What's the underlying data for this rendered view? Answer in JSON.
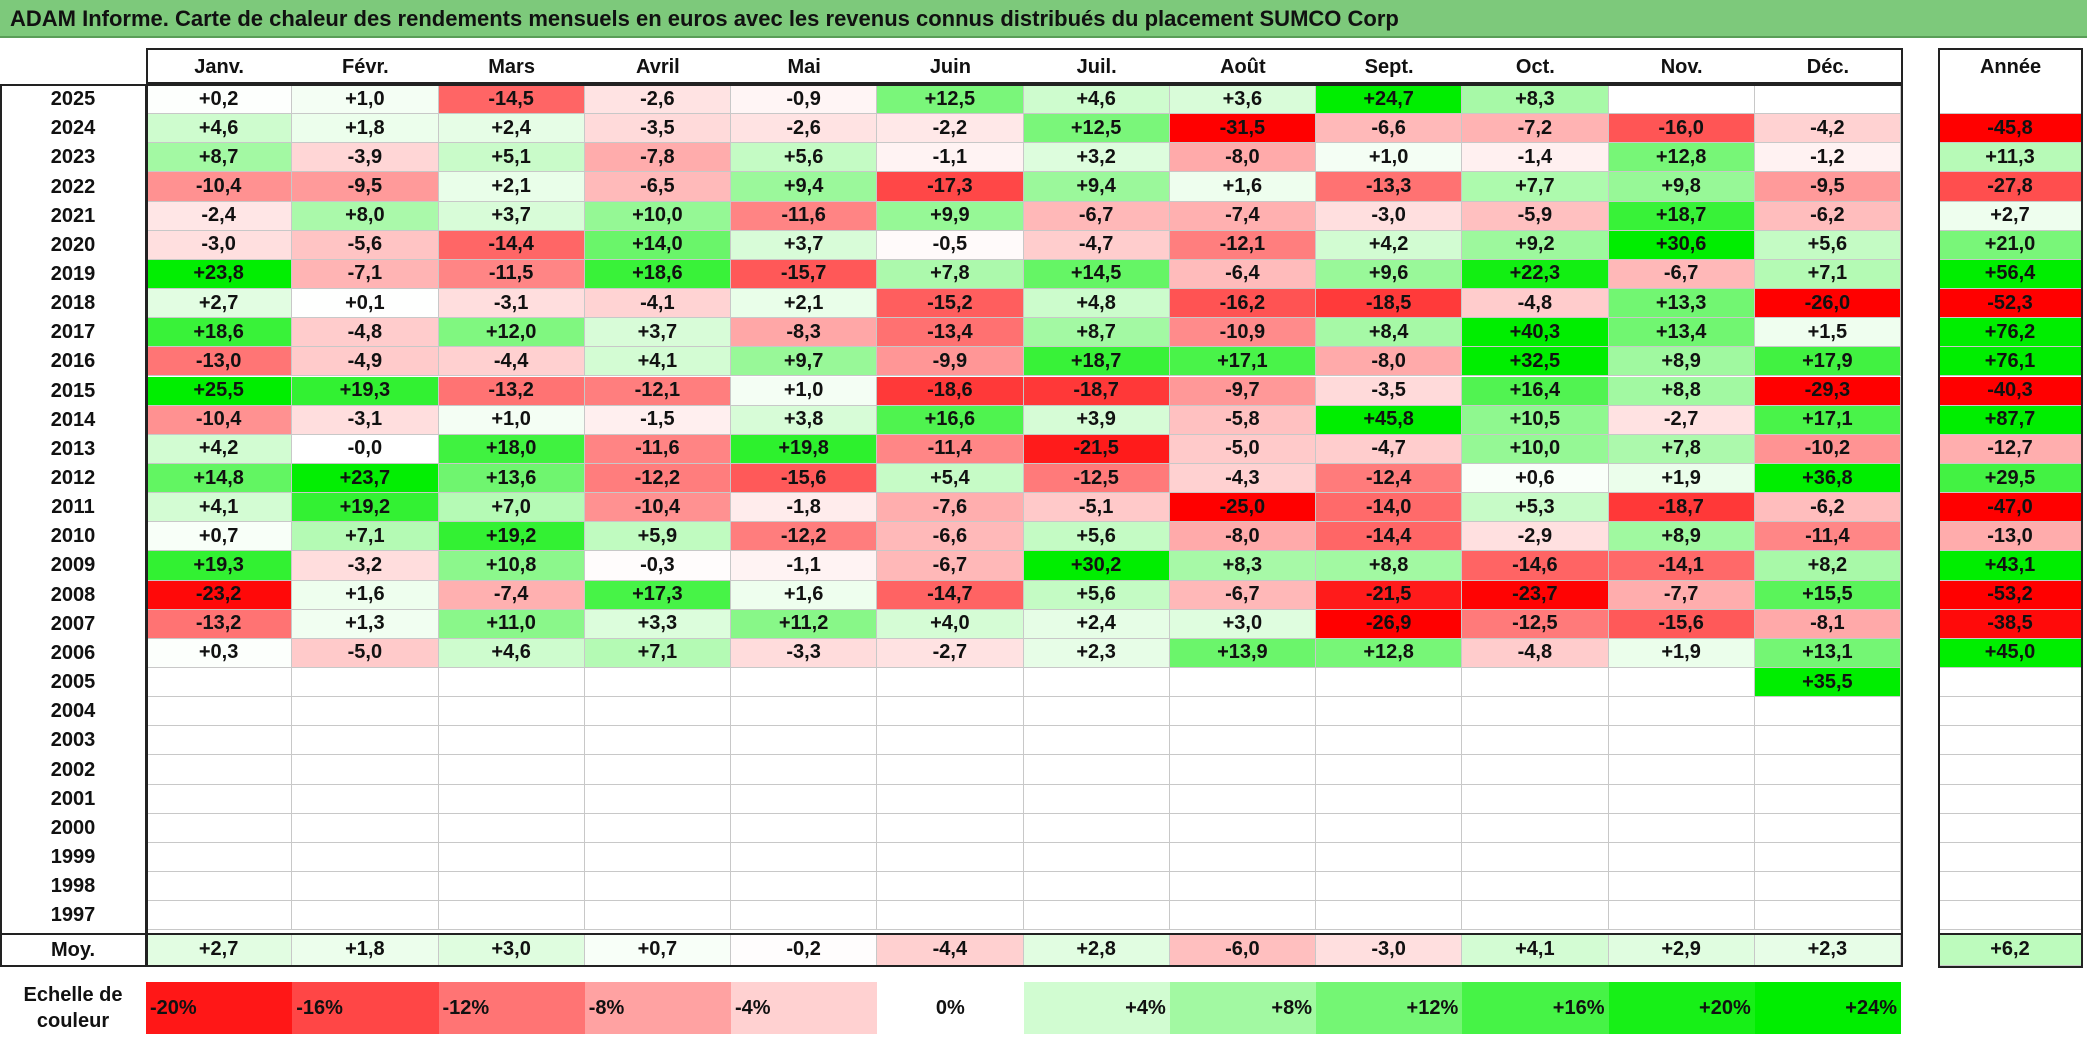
{
  "title": "ADAM Informe. Carte de chaleur des rendements mensuels en euros avec les revenus connus distribués du placement SUMCO Corp",
  "colors": {
    "title_bar": "#7dc97b",
    "positive_max": "#00ee00",
    "negative_max": "#ff0000",
    "neutral": "#ffffff"
  },
  "chart_data": {
    "type": "heatmap",
    "title": "ADAM Informe. Carte de chaleur des rendements mensuels en euros avec les revenus connus distribués du placement SUMCO Corp",
    "months": [
      "Janv.",
      "Févr.",
      "Mars",
      "Avril",
      "Mai",
      "Juin",
      "Juil.",
      "Août",
      "Sept.",
      "Oct.",
      "Nov.",
      "Déc."
    ],
    "year_header": "Année",
    "years": [
      "2025",
      "2024",
      "2023",
      "2022",
      "2021",
      "2020",
      "2019",
      "2018",
      "2017",
      "2016",
      "2015",
      "2014",
      "2013",
      "2012",
      "2011",
      "2010",
      "2009",
      "2008",
      "2007",
      "2006",
      "2005",
      "2004",
      "2003",
      "2002",
      "2001",
      "2000",
      "1999",
      "1998",
      "1997"
    ],
    "values": [
      [
        "+0,2",
        "+1,0",
        "-14,5",
        "-2,6",
        "-0,9",
        "+12,5",
        "+4,6",
        "+3,6",
        "+24,7",
        "+8,3",
        "",
        ""
      ],
      [
        "+4,6",
        "+1,8",
        "+2,4",
        "-3,5",
        "-2,6",
        "-2,2",
        "+12,5",
        "-31,5",
        "-6,6",
        "-7,2",
        "-16,0",
        "-4,2"
      ],
      [
        "+8,7",
        "-3,9",
        "+5,1",
        "-7,8",
        "+5,6",
        "-1,1",
        "+3,2",
        "-8,0",
        "+1,0",
        "-1,4",
        "+12,8",
        "-1,2"
      ],
      [
        "-10,4",
        "-9,5",
        "+2,1",
        "-6,5",
        "+9,4",
        "-17,3",
        "+9,4",
        "+1,6",
        "-13,3",
        "+7,7",
        "+9,8",
        "-9,5"
      ],
      [
        "-2,4",
        "+8,0",
        "+3,7",
        "+10,0",
        "-11,6",
        "+9,9",
        "-6,7",
        "-7,4",
        "-3,0",
        "-5,9",
        "+18,7",
        "-6,2"
      ],
      [
        "-3,0",
        "-5,6",
        "-14,4",
        "+14,0",
        "+3,7",
        "-0,5",
        "-4,7",
        "-12,1",
        "+4,2",
        "+9,2",
        "+30,6",
        "+5,6"
      ],
      [
        "+23,8",
        "-7,1",
        "-11,5",
        "+18,6",
        "-15,7",
        "+7,8",
        "+14,5",
        "-6,4",
        "+9,6",
        "+22,3",
        "-6,7",
        "+7,1"
      ],
      [
        "+2,7",
        "+0,1",
        "-3,1",
        "-4,1",
        "+2,1",
        "-15,2",
        "+4,8",
        "-16,2",
        "-18,5",
        "-4,8",
        "+13,3",
        "-26,0"
      ],
      [
        "+18,6",
        "-4,8",
        "+12,0",
        "+3,7",
        "-8,3",
        "-13,4",
        "+8,7",
        "-10,9",
        "+8,4",
        "+40,3",
        "+13,4",
        "+1,5"
      ],
      [
        "-13,0",
        "-4,9",
        "-4,4",
        "+4,1",
        "+9,7",
        "-9,9",
        "+18,7",
        "+17,1",
        "-8,0",
        "+32,5",
        "+8,9",
        "+17,9"
      ],
      [
        "+25,5",
        "+19,3",
        "-13,2",
        "-12,1",
        "+1,0",
        "-18,6",
        "-18,7",
        "-9,7",
        "-3,5",
        "+16,4",
        "+8,8",
        "-29,3"
      ],
      [
        "-10,4",
        "-3,1",
        "+1,0",
        "-1,5",
        "+3,8",
        "+16,6",
        "+3,9",
        "-5,8",
        "+45,8",
        "+10,5",
        "-2,7",
        "+17,1"
      ],
      [
        "+4,2",
        "-0,0",
        "+18,0",
        "-11,6",
        "+19,8",
        "-11,4",
        "-21,5",
        "-5,0",
        "-4,7",
        "+10,0",
        "+7,8",
        "-10,2"
      ],
      [
        "+14,8",
        "+23,7",
        "+13,6",
        "-12,2",
        "-15,6",
        "+5,4",
        "-12,5",
        "-4,3",
        "-12,4",
        "+0,6",
        "+1,9",
        "+36,8"
      ],
      [
        "+4,1",
        "+19,2",
        "+7,0",
        "-10,4",
        "-1,8",
        "-7,6",
        "-5,1",
        "-25,0",
        "-14,0",
        "+5,3",
        "-18,7",
        "-6,2"
      ],
      [
        "+0,7",
        "+7,1",
        "+19,2",
        "+5,9",
        "-12,2",
        "-6,6",
        "+5,6",
        "-8,0",
        "-14,4",
        "-2,9",
        "+8,9",
        "-11,4"
      ],
      [
        "+19,3",
        "-3,2",
        "+10,8",
        "-0,3",
        "-1,1",
        "-6,7",
        "+30,2",
        "+8,3",
        "+8,8",
        "-14,6",
        "-14,1",
        "+8,2"
      ],
      [
        "-23,2",
        "+1,6",
        "-7,4",
        "+17,3",
        "+1,6",
        "-14,7",
        "+5,6",
        "-6,7",
        "-21,5",
        "-23,7",
        "-7,7",
        "+15,5"
      ],
      [
        "-13,2",
        "+1,3",
        "+11,0",
        "+3,3",
        "+11,2",
        "+4,0",
        "+2,4",
        "+3,0",
        "-26,9",
        "-12,5",
        "-15,6",
        "-8,1"
      ],
      [
        "+0,3",
        "-5,0",
        "+4,6",
        "+7,1",
        "-3,3",
        "-2,7",
        "+2,3",
        "+13,9",
        "+12,8",
        "-4,8",
        "+1,9",
        "+13,1"
      ],
      [
        "",
        "",
        "",
        "",
        "",
        "",
        "",
        "",
        "",
        "",
        "",
        "+35,5"
      ],
      [
        "",
        "",
        "",
        "",
        "",
        "",
        "",
        "",
        "",
        "",
        "",
        ""
      ],
      [
        "",
        "",
        "",
        "",
        "",
        "",
        "",
        "",
        "",
        "",
        "",
        ""
      ],
      [
        "",
        "",
        "",
        "",
        "",
        "",
        "",
        "",
        "",
        "",
        "",
        ""
      ],
      [
        "",
        "",
        "",
        "",
        "",
        "",
        "",
        "",
        "",
        "",
        "",
        ""
      ],
      [
        "",
        "",
        "",
        "",
        "",
        "",
        "",
        "",
        "",
        "",
        "",
        ""
      ],
      [
        "",
        "",
        "",
        "",
        "",
        "",
        "",
        "",
        "",
        "",
        "",
        ""
      ],
      [
        "",
        "",
        "",
        "",
        "",
        "",
        "",
        "",
        "",
        "",
        "",
        ""
      ],
      [
        "",
        "",
        "",
        "",
        "",
        "",
        "",
        "",
        "",
        "",
        "",
        ""
      ]
    ],
    "annual": [
      "",
      "-45,8",
      "+11,3",
      "-27,8",
      "+2,7",
      "+21,0",
      "+56,4",
      "-52,3",
      "+76,2",
      "+76,1",
      "-40,3",
      "+87,7",
      "-12,7",
      "+29,5",
      "-47,0",
      "-13,0",
      "+43,1",
      "-53,2",
      "-38,5",
      "+45,0",
      "",
      "",
      "",
      "",
      "",
      "",
      "",
      "",
      ""
    ],
    "average_label": "Moy.",
    "averages": [
      "+2,7",
      "+1,8",
      "+3,0",
      "+0,7",
      "-0,2",
      "-4,4",
      "+2,8",
      "-6,0",
      "-3,0",
      "+4,1",
      "+2,9",
      "+2,3"
    ],
    "average_annual": "+6,2",
    "scale_label": "Echelle de couleur",
    "scale": [
      {
        "label": "-20%",
        "value": -20
      },
      {
        "label": "-16%",
        "value": -16
      },
      {
        "label": "-12%",
        "value": -12
      },
      {
        "label": "-8%",
        "value": -8
      },
      {
        "label": "-4%",
        "value": -4
      },
      {
        "label": "0%",
        "value": 0
      },
      {
        "label": "+4%",
        "value": 4
      },
      {
        "label": "+8%",
        "value": 8
      },
      {
        "label": "+12%",
        "value": 12
      },
      {
        "label": "+16%",
        "value": 16
      },
      {
        "label": "+20%",
        "value": 20
      },
      {
        "label": "+24%",
        "value": 24
      }
    ]
  }
}
